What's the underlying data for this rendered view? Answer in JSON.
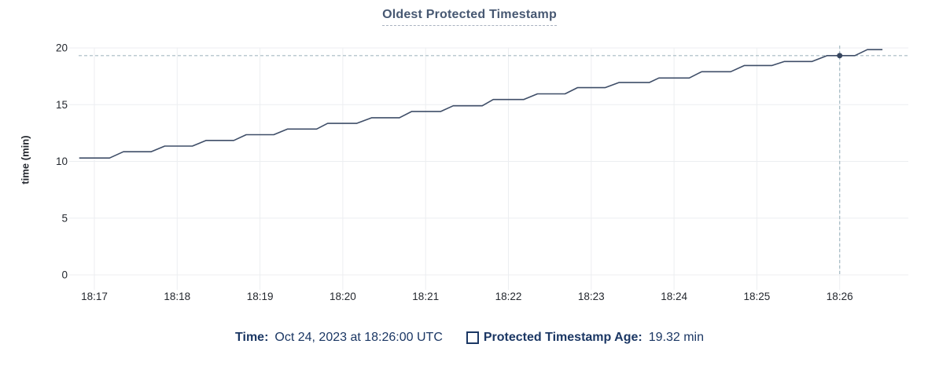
{
  "title": "Oldest Protected Timestamp",
  "chart_data": {
    "type": "line",
    "title": "Oldest Protected Timestamp",
    "xlabel": "",
    "ylabel": "time (min)",
    "ylim": [
      0,
      20
    ],
    "y_ticks": [
      0,
      5,
      10,
      15,
      20
    ],
    "x_ticks": [
      "18:17",
      "18:18",
      "18:19",
      "18:20",
      "18:21",
      "18:22",
      "18:23",
      "18:24",
      "18:25",
      "18:26"
    ],
    "x_range": [
      "18:16:49",
      "18:26:50"
    ],
    "grid": true,
    "legend_position": "bottom",
    "series": [
      {
        "name": "Protected Timestamp Age",
        "unit": "min",
        "color": "#3f4e68",
        "points": [
          [
            "18:16:49",
            10.3
          ],
          [
            "18:17:11",
            10.3
          ],
          [
            "18:17:21",
            10.85
          ],
          [
            "18:17:41",
            10.85
          ],
          [
            "18:17:51",
            11.35
          ],
          [
            "18:18:11",
            11.35
          ],
          [
            "18:18:21",
            11.85
          ],
          [
            "18:18:41",
            11.85
          ],
          [
            "18:18:50",
            12.35
          ],
          [
            "18:19:10",
            12.35
          ],
          [
            "18:19:20",
            12.85
          ],
          [
            "18:19:41",
            12.85
          ],
          [
            "18:19:49",
            13.35
          ],
          [
            "18:20:10",
            13.35
          ],
          [
            "18:20:21",
            13.85
          ],
          [
            "18:20:41",
            13.85
          ],
          [
            "18:20:50",
            14.4
          ],
          [
            "18:21:11",
            14.4
          ],
          [
            "18:21:20",
            14.9
          ],
          [
            "18:21:41",
            14.9
          ],
          [
            "18:21:49",
            15.45
          ],
          [
            "18:22:11",
            15.45
          ],
          [
            "18:22:21",
            15.95
          ],
          [
            "18:22:41",
            15.95
          ],
          [
            "18:22:50",
            16.5
          ],
          [
            "18:23:10",
            16.5
          ],
          [
            "18:23:20",
            16.95
          ],
          [
            "18:23:42",
            16.95
          ],
          [
            "18:23:49",
            17.35
          ],
          [
            "18:24:11",
            17.35
          ],
          [
            "18:24:20",
            17.9
          ],
          [
            "18:24:41",
            17.9
          ],
          [
            "18:24:51",
            18.45
          ],
          [
            "18:25:11",
            18.45
          ],
          [
            "18:25:20",
            18.8
          ],
          [
            "18:25:40",
            18.8
          ],
          [
            "18:25:51",
            19.32
          ],
          [
            "18:26:11",
            19.32
          ],
          [
            "18:26:20",
            19.85
          ],
          [
            "18:26:31",
            19.85
          ]
        ]
      }
    ],
    "hover_point": {
      "t": "18:26:00",
      "v": 19.32
    }
  },
  "footer": {
    "time_label": "Time:",
    "time_value": "Oct 24, 2023 at 18:26:00 UTC",
    "series_label": "Protected Timestamp Age:",
    "series_value": "19.32 min"
  },
  "theme": {
    "title_color": "#475872",
    "line_color": "#3f4e68",
    "dot_color": "#36455f",
    "grid_color": "#eceef1",
    "tick_text_color": "#24282f",
    "crosshair_color": "#a5bac2",
    "footer_text_color": "#1b3764"
  }
}
